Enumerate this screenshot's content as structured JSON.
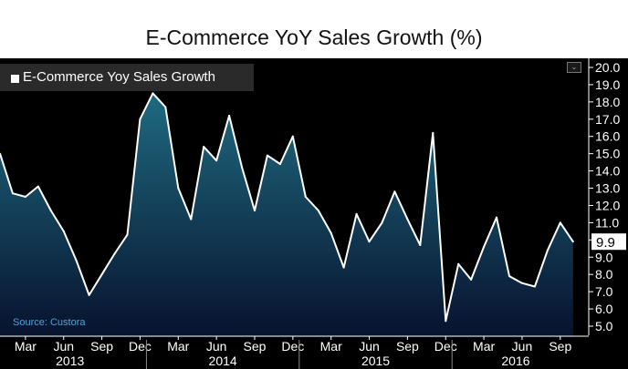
{
  "chart_data": {
    "type": "area",
    "title": "E-Commerce YoY Sales Growth (%)",
    "series": [
      {
        "name": "E-Commerce Yoy Sales Growth",
        "color": "#ffffff",
        "x": [
          "2013-01",
          "2013-02",
          "2013-03",
          "2013-04",
          "2013-05",
          "2013-06",
          "2013-07",
          "2013-08",
          "2013-09",
          "2013-10",
          "2013-11",
          "2013-12",
          "2014-01",
          "2014-02",
          "2014-03",
          "2014-04",
          "2014-05",
          "2014-06",
          "2014-07",
          "2014-08",
          "2014-09",
          "2014-10",
          "2014-11",
          "2014-12",
          "2015-01",
          "2015-02",
          "2015-03",
          "2015-04",
          "2015-05",
          "2015-06",
          "2015-07",
          "2015-08",
          "2015-09",
          "2015-10",
          "2015-11",
          "2015-12",
          "2016-01",
          "2016-02",
          "2016-03",
          "2016-04",
          "2016-05",
          "2016-06",
          "2016-07",
          "2016-08",
          "2016-09",
          "2016-10"
        ],
        "values": [
          15.0,
          12.7,
          12.5,
          13.1,
          11.7,
          10.5,
          8.8,
          6.8,
          8.0,
          9.2,
          10.3,
          17.0,
          18.5,
          17.7,
          13.0,
          11.2,
          15.4,
          14.6,
          17.2,
          14.2,
          11.7,
          14.9,
          14.4,
          16.0,
          12.5,
          11.7,
          10.4,
          8.4,
          11.5,
          9.9,
          11.0,
          12.8,
          11.2,
          9.7,
          16.2,
          5.3,
          8.6,
          7.7,
          9.6,
          11.3,
          7.9,
          7.5,
          7.3,
          9.4,
          11.0,
          9.9
        ]
      }
    ],
    "last_value_label": "9.9",
    "y_ticks": [
      "5.0",
      "6.0",
      "7.0",
      "8.0",
      "9.0",
      "10.0",
      "11.0",
      "12.0",
      "13.0",
      "14.0",
      "15.0",
      "16.0",
      "17.0",
      "18.0",
      "19.0",
      "20.0"
    ],
    "ylim": [
      4.5,
      20.3
    ],
    "x_month_labels": [
      {
        "label": "Mar",
        "x": "2013-03"
      },
      {
        "label": "Jun",
        "x": "2013-06"
      },
      {
        "label": "Sep",
        "x": "2013-09"
      },
      {
        "label": "Dec",
        "x": "2013-12"
      },
      {
        "label": "Mar",
        "x": "2014-03"
      },
      {
        "label": "Jun",
        "x": "2014-06"
      },
      {
        "label": "Sep",
        "x": "2014-09"
      },
      {
        "label": "Dec",
        "x": "2014-12"
      },
      {
        "label": "Mar",
        "x": "2015-03"
      },
      {
        "label": "Jun",
        "x": "2015-06"
      },
      {
        "label": "Sep",
        "x": "2015-09"
      },
      {
        "label": "Dec",
        "x": "2015-12"
      },
      {
        "label": "Mar",
        "x": "2016-03"
      },
      {
        "label": "Jun",
        "x": "2016-06"
      },
      {
        "label": "Sep",
        "x": "2016-09"
      }
    ],
    "x_year_labels": [
      {
        "label": "2013",
        "x": "2013-06.5"
      },
      {
        "label": "2014",
        "x": "2014-06.5"
      },
      {
        "label": "2015",
        "x": "2015-06.5"
      },
      {
        "label": "2016",
        "x": "2016-05.5"
      }
    ],
    "legend_position": "top-left",
    "grid": false,
    "source": "Source: Custora",
    "colors": {
      "background": "#000000",
      "area_top": "#1f6a80",
      "area_bottom": "#07122e",
      "line": "#ffffff",
      "source_text": "#4fa3d8",
      "axis": "#ffffff"
    }
  }
}
